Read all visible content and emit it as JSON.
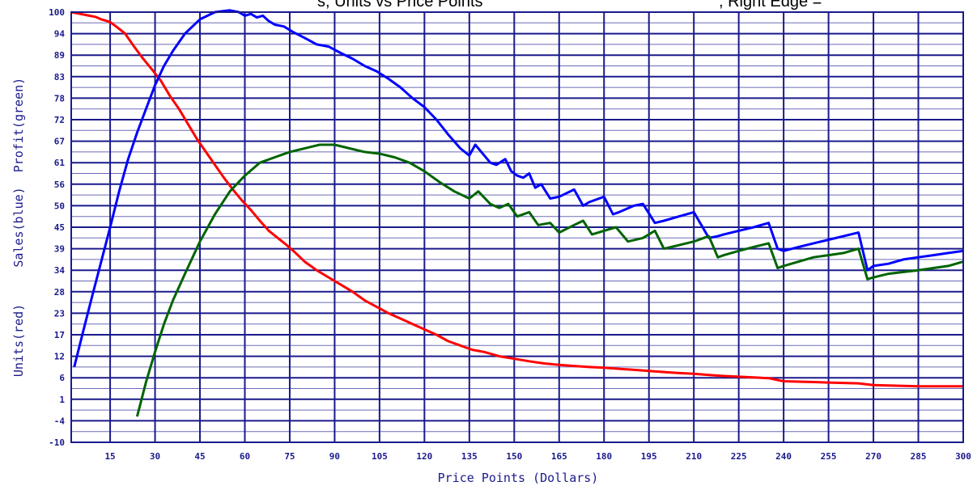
{
  "chart_data": {
    "type": "line",
    "title": "",
    "xlabel": "Price Points (Dollars)",
    "ylabel": "Units(red)     Sales(blue)  Profit(green)",
    "x_ticks": [
      15,
      30,
      45,
      60,
      75,
      90,
      105,
      120,
      135,
      150,
      165,
      180,
      195,
      210,
      225,
      240,
      255,
      270,
      285,
      300
    ],
    "y_ticks": [
      -10,
      -4,
      1,
      6,
      12,
      17,
      23,
      28,
      34,
      39,
      45,
      50,
      56,
      61,
      67,
      72,
      78,
      83,
      89,
      94,
      100
    ],
    "xlim": [
      2,
      300
    ],
    "ylim": [
      -10,
      100
    ],
    "grid": true,
    "series": [
      {
        "name": "Units(red)",
        "color": "#ff0000",
        "x": [
          2,
          5,
          8,
          10,
          12,
          14,
          15,
          17,
          20,
          23,
          26,
          29,
          32,
          35,
          38,
          41,
          44,
          47,
          50,
          53,
          56,
          59,
          62,
          65,
          68,
          71,
          74,
          77,
          80,
          84,
          88,
          92,
          96,
          100,
          104,
          108,
          112,
          116,
          120,
          124,
          128,
          132,
          136,
          140,
          145,
          150,
          155,
          160,
          165,
          170,
          175,
          180,
          185,
          190,
          195,
          200,
          205,
          210,
          215,
          220,
          225,
          230,
          235,
          240,
          245,
          250,
          255,
          260,
          265,
          270,
          275,
          280,
          285,
          290,
          295,
          300
        ],
        "y": [
          100,
          99.5,
          99,
          98.7,
          98,
          97.5,
          97.2,
          96,
          94,
          91,
          88,
          85,
          82,
          78.5,
          75,
          71,
          67.5,
          64,
          60.5,
          57.5,
          54.5,
          51.5,
          49,
          46.5,
          44,
          42,
          40,
          38,
          36,
          34,
          32,
          30,
          28,
          26,
          24.5,
          23,
          21.5,
          20,
          18.5,
          17,
          15.5,
          14.5,
          13.5,
          13,
          12,
          11.3,
          10.6,
          10,
          9.6,
          9.3,
          9,
          8.8,
          8.5,
          8.2,
          7.9,
          7.6,
          7.3,
          7.1,
          6.8,
          6.5,
          6.3,
          6.1,
          5.9,
          5.2,
          5.1,
          5.0,
          4.9,
          4.8,
          4.7,
          4.3,
          4.2,
          4.1,
          4.0,
          4.0,
          4.0,
          4.0
        ]
      },
      {
        "name": "Sales(blue)",
        "color": "#0000ff",
        "x": [
          3,
          6,
          9,
          12,
          15,
          18,
          21,
          24,
          27,
          30,
          33,
          36,
          40,
          45,
          50,
          55,
          58,
          60,
          62,
          64,
          66,
          68,
          70,
          73,
          76,
          80,
          84,
          88,
          92,
          96,
          100,
          104,
          108,
          112,
          116,
          120,
          124,
          128,
          132,
          135,
          137,
          140,
          142,
          144,
          147,
          149,
          151,
          153,
          155,
          157,
          159,
          162,
          165,
          170,
          173,
          175,
          180,
          183,
          185,
          190,
          193,
          197,
          200,
          205,
          210,
          215,
          218,
          220,
          225,
          230,
          235,
          238,
          240,
          245,
          250,
          255,
          260,
          265,
          268,
          270,
          275,
          280,
          285,
          290,
          295,
          300
        ],
        "y": [
          9,
          18,
          27,
          36,
          45,
          54,
          62,
          69,
          75,
          81,
          86,
          90,
          94,
          98,
          100,
          100.5,
          100,
          99,
          99.5,
          98.5,
          99,
          97.5,
          96.5,
          96,
          94.5,
          93,
          91.5,
          91,
          89.5,
          88,
          86,
          84.5,
          82.5,
          80.5,
          78,
          75.5,
          72,
          68.5,
          65,
          63,
          66,
          63,
          61,
          60.5,
          62,
          59,
          58,
          57.5,
          58.5,
          55,
          56,
          52,
          52.5,
          54.5,
          50,
          51,
          52.5,
          48,
          48.5,
          50,
          50.5,
          46,
          46.5,
          47.5,
          48.5,
          42,
          42.5,
          43,
          44,
          45,
          46,
          39,
          38.5,
          39.5,
          40.5,
          41.5,
          42.5,
          43.5,
          34,
          35,
          35.5,
          36.5,
          37,
          37.5,
          38,
          38.5
        ]
      },
      {
        "name": "Profit(green)",
        "color": "#006400",
        "x": [
          24,
          27,
          30,
          33,
          36,
          40,
          45,
          50,
          55,
          60,
          65,
          70,
          75,
          80,
          85,
          90,
          95,
          100,
          105,
          110,
          115,
          120,
          125,
          130,
          135,
          138,
          142,
          145,
          148,
          151,
          155,
          158,
          162,
          165,
          170,
          173,
          176,
          180,
          184,
          188,
          193,
          197,
          200,
          205,
          210,
          215,
          218,
          220,
          225,
          230,
          235,
          238,
          240,
          245,
          250,
          255,
          260,
          265,
          268,
          270,
          275,
          280,
          285,
          290,
          295,
          300
        ],
        "y": [
          -3,
          5,
          13,
          20,
          26,
          33,
          41,
          48,
          54,
          58,
          61,
          62.5,
          64,
          65,
          66,
          66,
          65,
          64,
          63.5,
          62.5,
          61,
          59,
          56.5,
          54,
          52,
          54,
          50.5,
          49.5,
          50.5,
          47.5,
          48.5,
          45.5,
          46,
          43.5,
          45.5,
          46.5,
          43,
          44,
          45,
          41,
          42,
          44,
          39,
          40,
          41,
          42.5,
          37,
          37.5,
          38.5,
          39.5,
          40.5,
          34.5,
          35,
          36,
          37,
          37.5,
          38,
          39,
          31.5,
          32,
          33,
          33.5,
          34,
          34.5,
          35,
          36
        ]
      }
    ]
  },
  "header_clip": {
    "left": "s, Units vs Price Points",
    "right": ", Right Edge ="
  }
}
